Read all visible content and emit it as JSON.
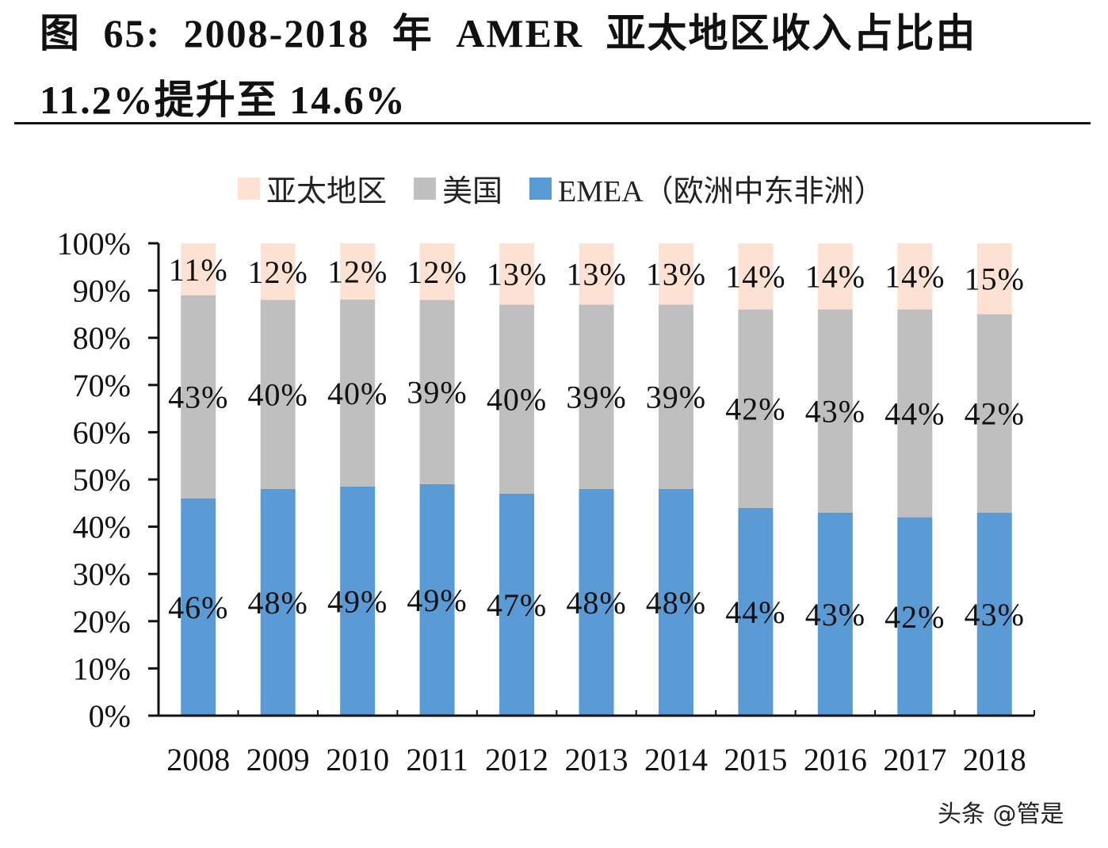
{
  "chart_data": {
    "type": "bar",
    "stacked": true,
    "title_line1": "图 65: 2008-2018 年 AMER 亚太地区收入占比由",
    "title_line2": "11.2%提升至 14.6%",
    "categories": [
      "2008",
      "2009",
      "2010",
      "2011",
      "2012",
      "2013",
      "2014",
      "2015",
      "2016",
      "2017",
      "2018"
    ],
    "series": [
      {
        "name": "EMEA（欧洲中东非洲）",
        "color": "#5b9bd5",
        "values": [
          46,
          48,
          49,
          49,
          47,
          48,
          48,
          44,
          43,
          42,
          43
        ]
      },
      {
        "name": "美国",
        "color": "#bfbfbf",
        "values": [
          43,
          40,
          40,
          39,
          40,
          39,
          39,
          42,
          43,
          44,
          42
        ]
      },
      {
        "name": "亚太地区",
        "color": "#fde2d4",
        "values": [
          11,
          12,
          12,
          12,
          13,
          13,
          13,
          14,
          14,
          14,
          15
        ]
      }
    ],
    "legend_order": [
      "亚太地区",
      "美国",
      "EMEA（欧洲中东非洲）"
    ],
    "legend_position": "top",
    "yticks": [
      "0%",
      "10%",
      "20%",
      "30%",
      "40%",
      "50%",
      "60%",
      "70%",
      "80%",
      "90%",
      "100%"
    ],
    "ylim": [
      0,
      100
    ],
    "data_label_suffix": "%",
    "grid": false
  },
  "watermark": "头条 @管是"
}
